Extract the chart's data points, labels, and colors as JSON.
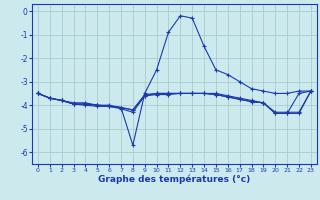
{
  "xlabel": "Graphe des températures (°c)",
  "background_color": "#cce9ee",
  "grid_color": "#aacccc",
  "line_color": "#1a3ab0",
  "xlim": [
    -0.5,
    23.5
  ],
  "ylim": [
    -6.5,
    0.3
  ],
  "yticks": [
    0,
    -1,
    -2,
    -3,
    -4,
    -5,
    -6
  ],
  "xticks": [
    0,
    1,
    2,
    3,
    4,
    5,
    6,
    7,
    8,
    9,
    10,
    11,
    12,
    13,
    14,
    15,
    16,
    17,
    18,
    19,
    20,
    21,
    22,
    23
  ],
  "series": [
    [
      [
        0,
        -3.5
      ],
      [
        1,
        -3.7
      ],
      [
        2,
        -3.8
      ],
      [
        3,
        -3.9
      ],
      [
        4,
        -3.9
      ],
      [
        5,
        -4.0
      ],
      [
        6,
        -4.0
      ],
      [
        7,
        -4.1
      ],
      [
        8,
        -5.7
      ],
      [
        9,
        -3.5
      ],
      [
        10,
        -2.5
      ],
      [
        11,
        -0.9
      ],
      [
        12,
        -0.2
      ],
      [
        13,
        -0.3
      ],
      [
        14,
        -1.5
      ],
      [
        15,
        -2.5
      ],
      [
        16,
        -2.7
      ],
      [
        17,
        -3.0
      ],
      [
        18,
        -3.3
      ],
      [
        19,
        -3.4
      ],
      [
        20,
        -3.5
      ],
      [
        21,
        -3.5
      ],
      [
        22,
        -3.4
      ],
      [
        23,
        -3.4
      ]
    ],
    [
      [
        0,
        -3.5
      ],
      [
        1,
        -3.7
      ],
      [
        2,
        -3.8
      ],
      [
        3,
        -3.95
      ],
      [
        4,
        -3.95
      ],
      [
        5,
        -4.0
      ],
      [
        6,
        -4.05
      ],
      [
        7,
        -4.1
      ],
      [
        8,
        -4.2
      ],
      [
        9,
        -3.6
      ],
      [
        10,
        -3.5
      ],
      [
        11,
        -3.5
      ],
      [
        12,
        -3.5
      ],
      [
        13,
        -3.5
      ],
      [
        14,
        -3.5
      ],
      [
        15,
        -3.5
      ],
      [
        16,
        -3.6
      ],
      [
        17,
        -3.7
      ],
      [
        18,
        -3.8
      ],
      [
        19,
        -3.9
      ],
      [
        20,
        -4.3
      ],
      [
        21,
        -4.3
      ],
      [
        22,
        -4.3
      ],
      [
        23,
        -3.4
      ]
    ],
    [
      [
        0,
        -3.5
      ],
      [
        1,
        -3.7
      ],
      [
        2,
        -3.8
      ],
      [
        3,
        -3.95
      ],
      [
        4,
        -3.95
      ],
      [
        5,
        -4.0
      ],
      [
        6,
        -4.05
      ],
      [
        7,
        -4.1
      ],
      [
        8,
        -4.2
      ],
      [
        9,
        -3.55
      ],
      [
        10,
        -3.5
      ],
      [
        11,
        -3.5
      ],
      [
        12,
        -3.5
      ],
      [
        13,
        -3.5
      ],
      [
        14,
        -3.5
      ],
      [
        15,
        -3.55
      ],
      [
        16,
        -3.65
      ],
      [
        17,
        -3.75
      ],
      [
        18,
        -3.85
      ],
      [
        19,
        -3.9
      ],
      [
        20,
        -4.35
      ],
      [
        21,
        -4.35
      ],
      [
        22,
        -3.5
      ],
      [
        23,
        -3.4
      ]
    ],
    [
      [
        0,
        -3.5
      ],
      [
        1,
        -3.7
      ],
      [
        2,
        -3.8
      ],
      [
        3,
        -3.95
      ],
      [
        4,
        -4.0
      ],
      [
        5,
        -4.05
      ],
      [
        6,
        -4.05
      ],
      [
        7,
        -4.15
      ],
      [
        8,
        -4.3
      ],
      [
        9,
        -3.6
      ],
      [
        10,
        -3.55
      ],
      [
        11,
        -3.55
      ],
      [
        12,
        -3.5
      ],
      [
        13,
        -3.5
      ],
      [
        14,
        -3.5
      ],
      [
        15,
        -3.55
      ],
      [
        16,
        -3.65
      ],
      [
        17,
        -3.75
      ],
      [
        18,
        -3.85
      ],
      [
        19,
        -3.9
      ],
      [
        20,
        -4.35
      ],
      [
        21,
        -4.35
      ],
      [
        22,
        -4.35
      ],
      [
        23,
        -3.4
      ]
    ]
  ]
}
